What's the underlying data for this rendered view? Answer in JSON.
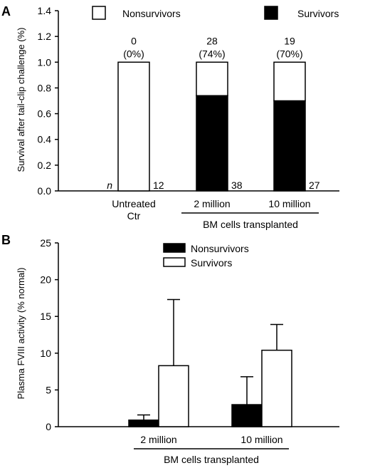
{
  "chart_data": [
    {
      "panel": "A",
      "type": "bar",
      "stacked": true,
      "ylabel": "Survival after tail-clip challenge (%)",
      "ylim": [
        0,
        1.4
      ],
      "yticks": [
        "0.0",
        "0.2",
        "0.4",
        "0.6",
        "0.8",
        "1.0",
        "1.2",
        "1.4"
      ],
      "categories": [
        "Untreated\nCtr",
        "2 million",
        "10 million"
      ],
      "series": [
        {
          "name": "Survivors",
          "color": "#000000",
          "values": [
            0,
            0.74,
            0.7
          ]
        },
        {
          "name": "Nonsurvivors",
          "color": "#ffffff",
          "values": [
            1.0,
            0.26,
            0.3
          ]
        }
      ],
      "top_labels": [
        {
          "count": "0",
          "percent": "(0%)"
        },
        {
          "count": "28",
          "percent": "(74%)"
        },
        {
          "count": "19",
          "percent": "(70%)"
        }
      ],
      "n_label": "n",
      "n_values": [
        "12",
        "38",
        "27"
      ],
      "group_label": "BM cells transplanted",
      "legend": [
        "Nonsurvivors",
        "Survivors"
      ],
      "legend_position": "top"
    },
    {
      "panel": "B",
      "type": "bar",
      "ylabel": "Plasma FVIII activity (% normal)",
      "ylim": [
        0,
        25
      ],
      "yticks": [
        "0",
        "5",
        "10",
        "15",
        "20",
        "25"
      ],
      "categories": [
        "2 million",
        "10 million"
      ],
      "series": [
        {
          "name": "Nonsurvivors",
          "color": "#000000",
          "values": [
            0.9,
            3.0
          ],
          "errors": [
            0.7,
            3.8
          ]
        },
        {
          "name": "Survivors",
          "color": "#ffffff",
          "values": [
            8.3,
            10.4
          ],
          "errors": [
            9.0,
            3.5
          ]
        }
      ],
      "group_label": "BM cells transplanted",
      "legend": [
        "Nonsurvivors",
        "Survivors"
      ],
      "legend_position": "top-center"
    }
  ]
}
